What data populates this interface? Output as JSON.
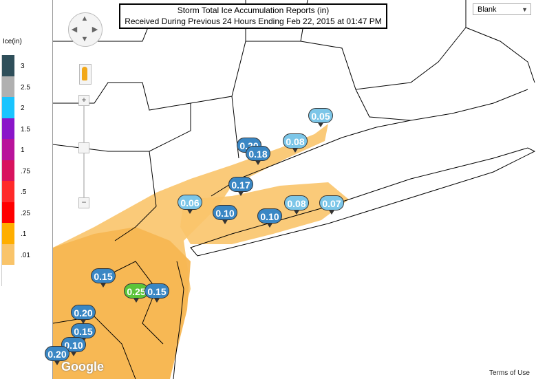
{
  "title": {
    "line1": "Storm Total Ice Accumulation Reports (in)",
    "line2": "Received During Previous 24 Hours Ending Feb 22, 2015 at 01:47 PM"
  },
  "legend": {
    "title": "Ice(in)",
    "entries": [
      {
        "label": "3",
        "color": "#2f4f5a"
      },
      {
        "label": "2.5",
        "color": "#b0b0b0"
      },
      {
        "label": "2",
        "color": "#19c4ff"
      },
      {
        "label": "1.5",
        "color": "#8a16c9"
      },
      {
        "label": "1",
        "color": "#b8139b"
      },
      {
        "label": ".75",
        "color": "#d8135e"
      },
      {
        "label": ".5",
        "color": "#ff2a2a"
      },
      {
        "label": ".25",
        "color": "#ff0000"
      },
      {
        "label": ".1",
        "color": "#ffae00"
      },
      {
        "label": ".01",
        "color": "#f9c46a"
      },
      {
        "label": "",
        "color": "#ffffff"
      }
    ]
  },
  "map_type": {
    "selected": "Blank"
  },
  "attribution": {
    "logo": "Google",
    "terms": "Terms of Use"
  },
  "icons": {
    "pan": "pan-control-icon",
    "pegman": "street-view-pegman-icon"
  },
  "zoom": {
    "in_label": "+",
    "out_label": "−"
  },
  "reports": [
    {
      "value": "0.05",
      "color": "#7cc6e8"
    },
    {
      "value": "0.08",
      "color": "#7cc6e8"
    },
    {
      "value": "0.20",
      "color": "#3a87c4"
    },
    {
      "value": "0.18",
      "color": "#3a87c4"
    },
    {
      "value": "0.17",
      "color": "#3a87c4"
    },
    {
      "value": "0.06",
      "color": "#7cc6e8"
    },
    {
      "value": "0.10",
      "color": "#3a87c4"
    },
    {
      "value": "0.10",
      "color": "#3a87c4"
    },
    {
      "value": "0.08",
      "color": "#7cc6e8"
    },
    {
      "value": "0.07",
      "color": "#7cc6e8"
    },
    {
      "value": "0.15",
      "color": "#3a87c4"
    },
    {
      "value": "0.25",
      "color": "#5cc43a"
    },
    {
      "value": "0.15",
      "color": "#3a87c4"
    },
    {
      "value": "0.20",
      "color": "#3a87c4"
    },
    {
      "value": "0.15",
      "color": "#3a87c4"
    },
    {
      "value": "0.10",
      "color": "#3a87c4"
    },
    {
      "value": "0.20",
      "color": "#3a87c4"
    }
  ]
}
